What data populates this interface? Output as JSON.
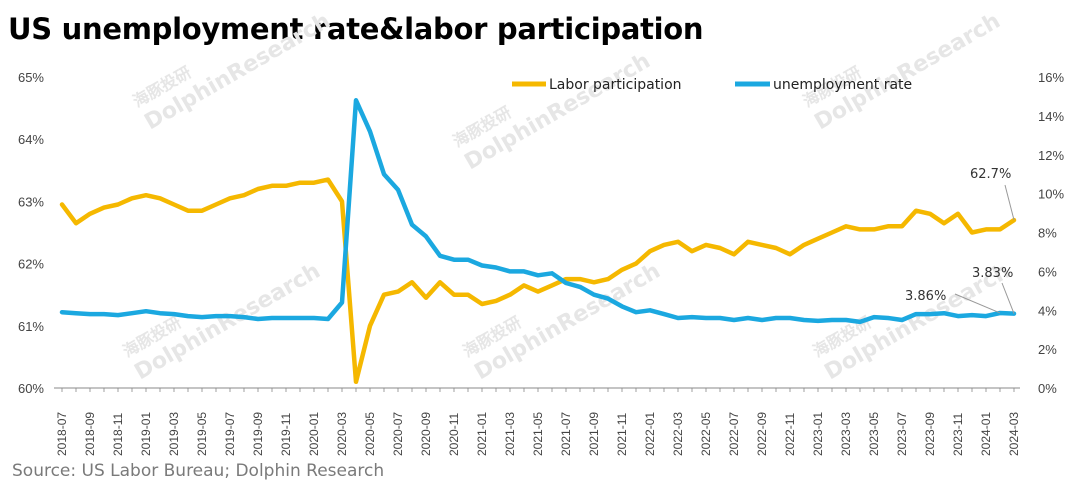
{
  "title": "US unemployment rate&labor participation",
  "source": "Source: US  Labor Bureau; Dolphin Research",
  "watermark": "DolphinResearch",
  "watermark_cn": "海豚投研",
  "colors": {
    "labor": "#F5B800",
    "unemployment": "#1BA8E0",
    "axis": "#888888"
  },
  "chart_data": {
    "type": "line",
    "title": "US unemployment rate&labor participation",
    "months": [
      "2018-07",
      "2018-08",
      "2018-09",
      "2018-10",
      "2018-11",
      "2018-12",
      "2019-01",
      "2019-02",
      "2019-03",
      "2019-04",
      "2019-05",
      "2019-06",
      "2019-07",
      "2019-08",
      "2019-09",
      "2019-10",
      "2019-11",
      "2019-12",
      "2020-01",
      "2020-02",
      "2020-03",
      "2020-04",
      "2020-05",
      "2020-06",
      "2020-07",
      "2020-08",
      "2020-09",
      "2020-10",
      "2020-11",
      "2020-12",
      "2021-01",
      "2021-02",
      "2021-03",
      "2021-04",
      "2021-05",
      "2021-06",
      "2021-07",
      "2021-08",
      "2021-09",
      "2021-10",
      "2021-11",
      "2021-12",
      "2022-01",
      "2022-02",
      "2022-03",
      "2022-04",
      "2022-05",
      "2022-06",
      "2022-07",
      "2022-08",
      "2022-09",
      "2022-10",
      "2022-11",
      "2022-12",
      "2023-01",
      "2023-02",
      "2023-03",
      "2023-04",
      "2023-05",
      "2023-06",
      "2023-07",
      "2023-08",
      "2023-09",
      "2023-10",
      "2023-11",
      "2023-12",
      "2024-01",
      "2024-02",
      "2024-03"
    ],
    "x_tick_labels": [
      "2018-07",
      "2018-09",
      "2018-11",
      "2019-01",
      "2019-03",
      "2019-05",
      "2019-07",
      "2019-09",
      "2019-11",
      "2020-01",
      "2020-03",
      "2020-05",
      "2020-07",
      "2020-09",
      "2020-11",
      "2021-01",
      "2021-03",
      "2021-05",
      "2021-07",
      "2021-09",
      "2021-11",
      "2022-01",
      "2022-03",
      "2022-05",
      "2022-07",
      "2022-09",
      "2022-11",
      "2023-01",
      "2023-03",
      "2023-05",
      "2023-07",
      "2023-09",
      "2023-11",
      "2024-01",
      "2024-03"
    ],
    "left_axis": {
      "min": 60,
      "max": 65,
      "ticks": [
        "60%",
        "61%",
        "62%",
        "63%",
        "64%",
        "65%"
      ]
    },
    "right_axis": {
      "min": 0,
      "max": 16,
      "ticks": [
        "0%",
        "2%",
        "4%",
        "6%",
        "8%",
        "10%",
        "12%",
        "14%",
        "16%"
      ]
    },
    "series": [
      {
        "name": "Labor participation",
        "axis": "left",
        "values": [
          62.95,
          62.65,
          62.8,
          62.9,
          62.95,
          63.05,
          63.1,
          63.05,
          62.95,
          62.85,
          62.85,
          62.95,
          63.05,
          63.1,
          63.2,
          63.25,
          63.25,
          63.3,
          63.3,
          63.35,
          63.0,
          60.1,
          61.0,
          61.5,
          61.55,
          61.7,
          61.45,
          61.7,
          61.5,
          61.5,
          61.35,
          61.4,
          61.5,
          61.65,
          61.55,
          61.65,
          61.75,
          61.75,
          61.7,
          61.75,
          61.9,
          62.0,
          62.2,
          62.3,
          62.35,
          62.2,
          62.3,
          62.25,
          62.15,
          62.35,
          62.3,
          62.25,
          62.15,
          62.3,
          62.4,
          62.5,
          62.6,
          62.55,
          62.55,
          62.6,
          62.6,
          62.85,
          62.8,
          62.65,
          62.8,
          62.5,
          62.55,
          62.55,
          62.7
        ]
      },
      {
        "name": "unemployment rate",
        "axis": "right",
        "values": [
          3.9,
          3.85,
          3.8,
          3.8,
          3.75,
          3.85,
          3.95,
          3.85,
          3.8,
          3.7,
          3.65,
          3.7,
          3.7,
          3.65,
          3.55,
          3.6,
          3.6,
          3.6,
          3.6,
          3.55,
          4.4,
          14.8,
          13.2,
          11.0,
          10.2,
          8.4,
          7.8,
          6.8,
          6.6,
          6.6,
          6.3,
          6.2,
          6.0,
          6.0,
          5.8,
          5.9,
          5.4,
          5.2,
          4.8,
          4.6,
          4.2,
          3.9,
          4.0,
          3.8,
          3.6,
          3.65,
          3.6,
          3.6,
          3.5,
          3.6,
          3.5,
          3.6,
          3.6,
          3.5,
          3.45,
          3.5,
          3.5,
          3.4,
          3.65,
          3.6,
          3.5,
          3.8,
          3.8,
          3.85,
          3.7,
          3.75,
          3.7,
          3.86,
          3.83
        ]
      }
    ],
    "legend": [
      "Labor participation",
      "unemployment rate"
    ],
    "annotations": [
      {
        "text": "62.7%",
        "series": "Labor participation",
        "month": "2024-03"
      },
      {
        "text": "3.83%",
        "series": "unemployment rate",
        "month": "2024-03"
      },
      {
        "text": "3.86%",
        "series": "unemployment rate",
        "month": "2024-02"
      }
    ]
  }
}
